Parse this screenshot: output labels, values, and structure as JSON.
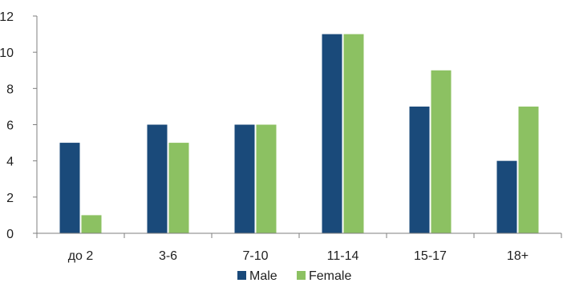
{
  "chart_data": {
    "type": "bar",
    "categories": [
      "до 2",
      "3-6",
      "7-10",
      "11-14",
      "15-17",
      "18+"
    ],
    "series": [
      {
        "name": "Male",
        "values": [
          5,
          6,
          6,
          11,
          7,
          4
        ],
        "color": "#1a4a7a"
      },
      {
        "name": "Female",
        "values": [
          1,
          5,
          6,
          11,
          9,
          7
        ],
        "color": "#8cc162"
      }
    ],
    "y_ticks": [
      "0",
      "2",
      "4",
      "6",
      "8",
      "10",
      "12"
    ],
    "ylim": [
      0,
      12
    ],
    "grid": false,
    "legend_position": "bottom",
    "axis_color": "#7f7f7f"
  }
}
